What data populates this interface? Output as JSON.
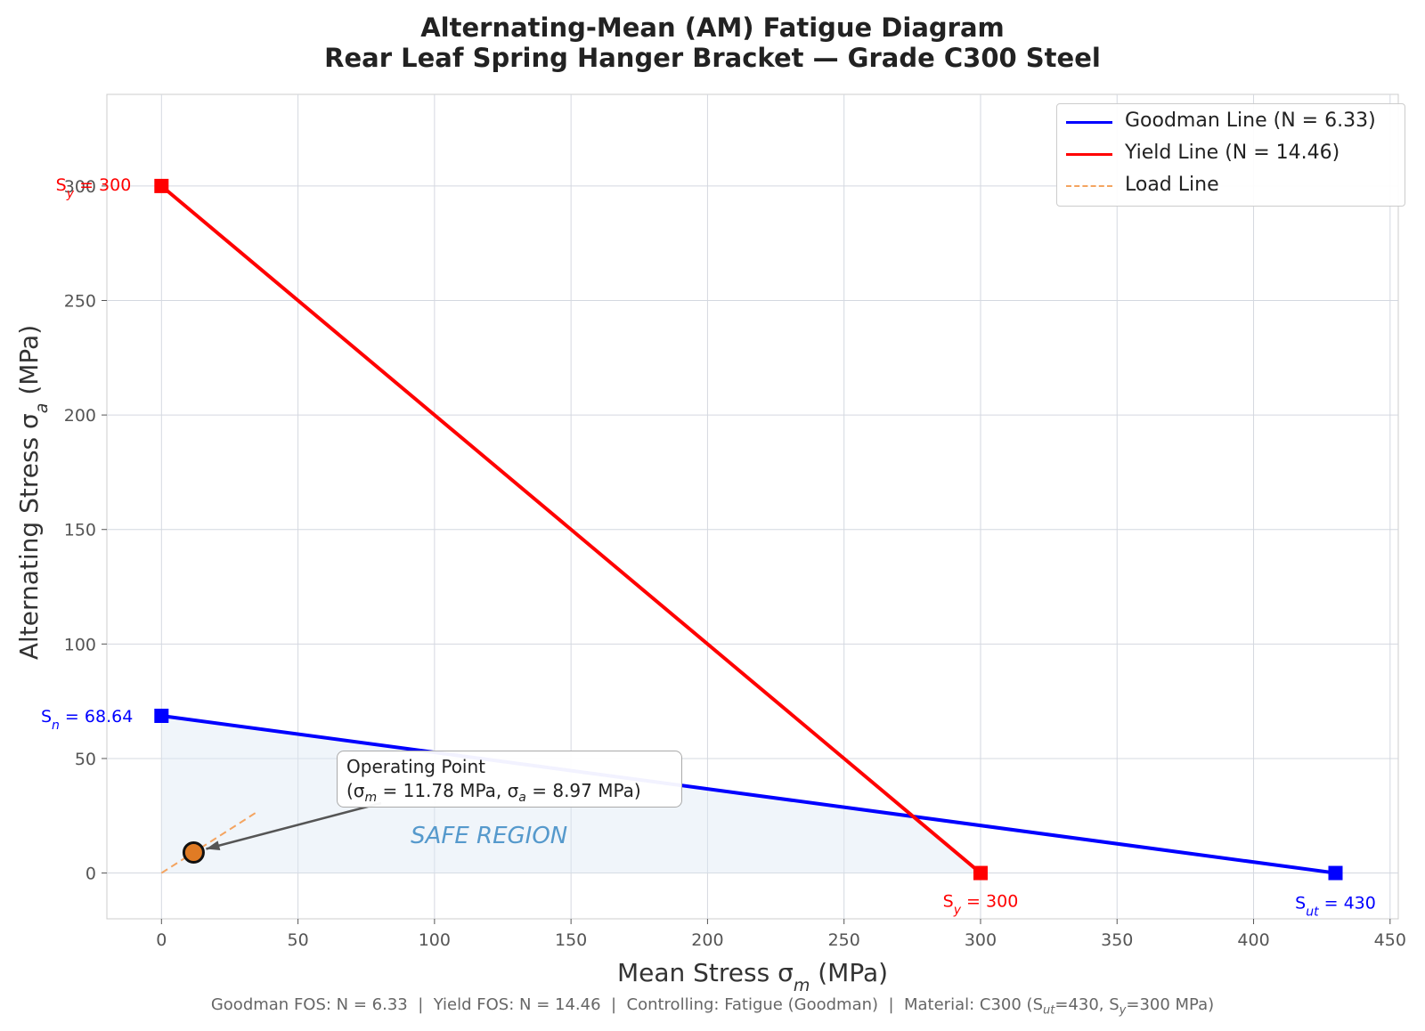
{
  "title_line1": "Alternating-Mean (AM) Fatigue Diagram",
  "title_line2": "Rear Leaf Spring Hanger Bracket — Grade C300 Steel",
  "footer": {
    "goodman": "Goodman FOS: N = 6.33",
    "yield": "Yield FOS: N = 14.46",
    "controlling": "Controlling: Fatigue (Goodman)",
    "material_prefix": "Material: C300 (S",
    "material_ut_sub": "ut",
    "material_mid": "=430, S",
    "material_y_sub": "y",
    "material_suffix": "=300 MPa)",
    "separator": "  |  "
  },
  "annotation": {
    "line1": "Operating Point",
    "line2_prefix": "(σ",
    "line2_m_sub": "m",
    "line2_mid": " = 11.78 MPa, σ",
    "line2_a_sub": "a",
    "line2_suffix": " = 8.97 MPa)"
  },
  "colors": {
    "goodman": "#0000ff",
    "yield": "#ff0000",
    "load": "#f4a460",
    "point_fill": "#e07b24",
    "safe_fill": "#dde8f3",
    "safe_text": "#5599cc",
    "grid": "#d4d8e0"
  },
  "chart_data": {
    "type": "line",
    "xlabel": "Mean Stress σm (MPa)",
    "ylabel": "Alternating Stress σa (MPa)",
    "xlim": [
      -20,
      453
    ],
    "ylim": [
      -20,
      340
    ],
    "grid": true,
    "legend_position": "top-right",
    "x_ticks": [
      0,
      50,
      100,
      150,
      200,
      250,
      300,
      350,
      400,
      450
    ],
    "y_ticks": [
      0,
      50,
      100,
      150,
      200,
      250,
      300
    ],
    "series": [
      {
        "name": "Goodman Line (N = 6.33)",
        "x": [
          0,
          430
        ],
        "y": [
          68.64,
          0
        ],
        "style": "solid"
      },
      {
        "name": "Yield Line (N = 14.46)",
        "x": [
          0,
          300
        ],
        "y": [
          300,
          0
        ],
        "style": "solid"
      },
      {
        "name": "Load Line",
        "x": [
          0,
          35.3
        ],
        "y": [
          0,
          26.9
        ],
        "style": "dashed"
      }
    ],
    "operating_point": {
      "x": 11.78,
      "y": 8.97
    },
    "safe_region": {
      "label": "SAFE REGION",
      "polygon": [
        [
          0,
          0
        ],
        [
          0,
          68.64
        ],
        [
          274.9,
          24.76
        ],
        [
          300,
          0
        ]
      ]
    },
    "endpoint_labels": [
      {
        "text": "S",
        "sub": "n",
        "rest": " = 68.64",
        "x": 0,
        "y": 68.64,
        "series": "goodman"
      },
      {
        "text": "S",
        "sub": "ut",
        "rest": " = 430",
        "x": 430,
        "y": 0,
        "series": "goodman"
      },
      {
        "text": "S",
        "sub": "y",
        "rest": " = 300",
        "x": 0,
        "y": 300,
        "series": "yield"
      },
      {
        "text": "S",
        "sub": "y",
        "rest": " = 300",
        "x": 300,
        "y": 0,
        "series": "yield"
      }
    ]
  }
}
